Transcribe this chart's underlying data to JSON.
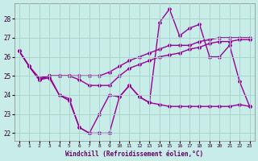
{
  "xlabel": "Windchill (Refroidissement éolien,°C)",
  "bg_color": "#c8ece8",
  "grid_color": "#aad4cc",
  "line_color": "#990099",
  "marker": "D",
  "markersize": 2.0,
  "linewidth": 1.0,
  "xlim": [
    -0.5,
    23.5
  ],
  "ylim": [
    21.6,
    28.8
  ],
  "yticks": [
    22,
    23,
    24,
    25,
    26,
    27,
    28
  ],
  "xticks": [
    0,
    1,
    2,
    3,
    4,
    5,
    6,
    7,
    8,
    9,
    10,
    11,
    12,
    13,
    14,
    15,
    16,
    17,
    18,
    19,
    20,
    21,
    22,
    23
  ],
  "series_wavy": [
    26.3,
    25.5,
    24.8,
    25.0,
    24.0,
    23.7,
    22.3,
    22.0,
    23.0,
    24.0,
    23.9,
    24.5,
    23.9,
    23.6,
    27.8,
    28.5,
    27.1,
    27.5,
    27.7,
    26.0,
    26.0,
    26.6,
    24.7,
    23.4
  ],
  "series_low_flat": [
    26.3,
    25.5,
    24.8,
    24.9,
    24.0,
    23.8,
    22.3,
    22.0,
    22.0,
    22.0,
    23.9,
    24.5,
    23.9,
    23.6,
    23.5,
    23.4,
    23.4,
    23.4,
    23.4,
    23.4,
    23.4,
    23.4,
    23.5,
    23.4
  ],
  "series_trend1": [
    26.3,
    25.5,
    24.8,
    25.0,
    25.0,
    25.0,
    24.8,
    24.5,
    24.5,
    24.5,
    25.0,
    25.4,
    25.6,
    25.8,
    26.0,
    26.1,
    26.2,
    26.4,
    26.5,
    26.7,
    26.8,
    26.8,
    26.9,
    26.9
  ],
  "series_trend2": [
    26.3,
    25.5,
    24.9,
    25.0,
    25.0,
    25.0,
    25.0,
    25.0,
    25.0,
    25.2,
    25.5,
    25.8,
    26.0,
    26.2,
    26.4,
    26.6,
    26.6,
    26.6,
    26.8,
    26.9,
    27.0,
    27.0,
    27.0,
    27.0
  ]
}
